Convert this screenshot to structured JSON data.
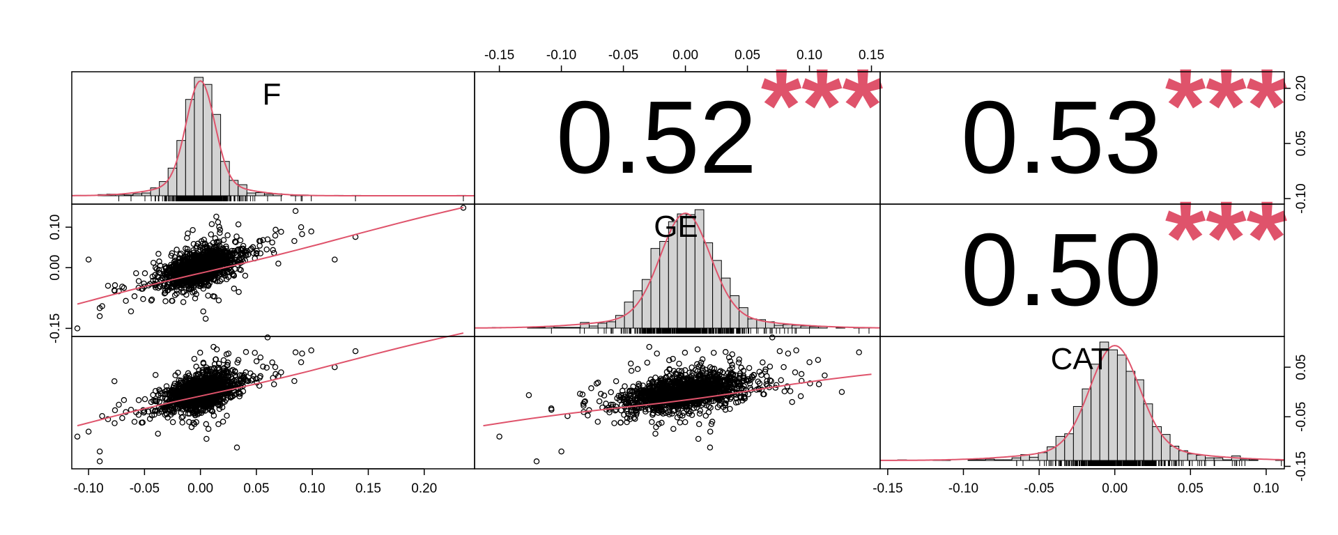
{
  "chart_data": {
    "type": "scatter",
    "title": "",
    "variables": [
      "F",
      "GE",
      "CAT"
    ],
    "correlations": [
      {
        "row": 0,
        "col": 1,
        "value": "0.52",
        "stars": "***"
      },
      {
        "row": 0,
        "col": 2,
        "value": "0.53",
        "stars": "***"
      },
      {
        "row": 1,
        "col": 2,
        "value": "0.50",
        "stars": "***"
      }
    ],
    "axes": {
      "F": {
        "range": [
          -0.115,
          0.245
        ],
        "ticks": [
          -0.1,
          -0.05,
          0.0,
          0.05,
          0.1,
          0.15,
          0.2
        ],
        "tick_labels": [
          "-0.10",
          "-0.05",
          "0.00",
          "0.05",
          "0.10",
          "0.15",
          "0.20"
        ]
      },
      "GE": {
        "range": [
          -0.17,
          0.157
        ],
        "ticks": [
          -0.15,
          -0.1,
          -0.05,
          0.0,
          0.05,
          0.1,
          0.15
        ],
        "tick_labels": [
          "-0.15",
          "-0.10",
          "-0.05",
          "0.00",
          "0.05",
          "0.10",
          "0.15"
        ]
      },
      "CAT": {
        "range": [
          -0.155,
          0.112
        ],
        "ticks": [
          -0.15,
          -0.1,
          -0.05,
          0.0,
          0.05,
          0.1
        ],
        "tick_labels": [
          "-0.15",
          "-0.10",
          "-0.05",
          "0.00",
          "0.05",
          "0.10"
        ]
      }
    },
    "left_axis_GE": {
      "ticks": [
        -0.15,
        0.0,
        0.1
      ],
      "tick_labels": [
        "-0.15",
        "0.00",
        "0.10"
      ]
    },
    "right_axis_F": {
      "ticks": [
        -0.1,
        0.05,
        0.2
      ],
      "tick_labels": [
        "-0.10",
        "0.05",
        "0.20"
      ]
    },
    "right_axis_CAT": {
      "ticks": [
        -0.15,
        -0.05,
        0.05
      ],
      "tick_labels": [
        "-0.15",
        "-0.05",
        "0.05"
      ]
    },
    "fit_lines": {
      "GE_vs_F": [
        [
          -0.11,
          -0.09
        ],
        [
          0.235,
          0.148
        ]
      ],
      "CAT_vs_F": [
        [
          -0.11,
          -0.068
        ],
        [
          0.235,
          0.118
        ]
      ],
      "CAT_vs_GE": [
        [
          -0.163,
          -0.068
        ],
        [
          0.15,
          0.035
        ]
      ]
    },
    "colors": {
      "stars": "#DF536B",
      "fit": "#DF536B",
      "hist_fill": "#D3D3D3",
      "points": "#000000"
    },
    "distributions": {
      "F": {
        "sd": 0.014
      },
      "GE": {
        "sd": 0.022
      },
      "CAT": {
        "sd": 0.018
      }
    }
  }
}
